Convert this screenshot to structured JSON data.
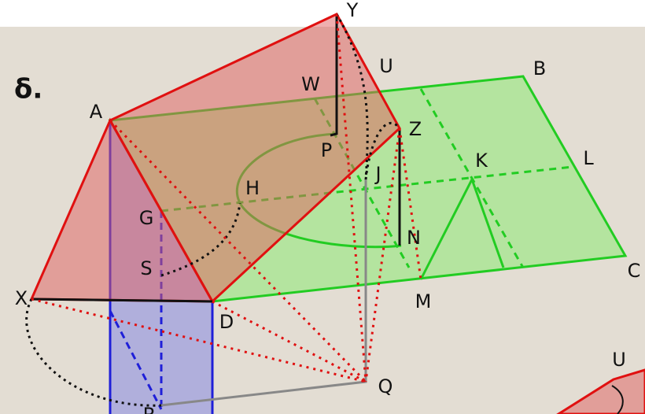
{
  "title": "δ.",
  "labels": [
    "Y",
    "U",
    "B",
    "W",
    "A",
    "Z",
    "P",
    "K",
    "L",
    "J",
    "H",
    "G",
    "N",
    "S",
    "C",
    "X",
    "M",
    "D",
    "Q",
    "R",
    "U"
  ]
}
